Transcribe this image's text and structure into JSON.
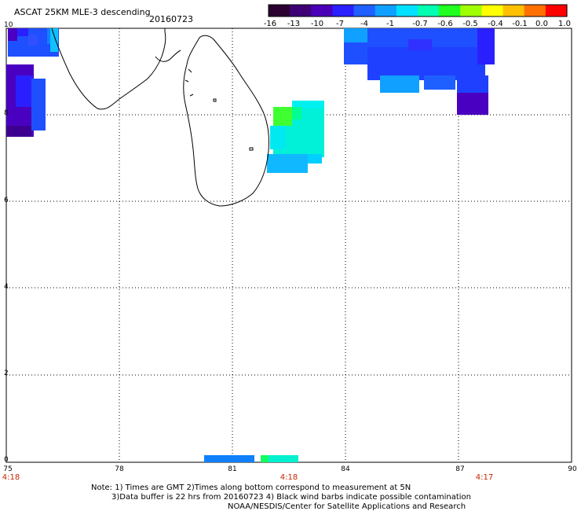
{
  "header": {
    "title": "ASCAT 25KM MLE-3 descending",
    "date": "20160723"
  },
  "colorbar": {
    "labels": [
      "-16",
      "-13",
      "-10",
      "-7",
      "-4",
      "-1",
      "-0.7",
      "-0.6",
      "-0.5",
      "-0.4",
      "-0.1",
      "0.0",
      "1.0"
    ],
    "colors": [
      "#2a0030",
      "#3d0075",
      "#4a00b8",
      "#2a20ff",
      "#2060ff",
      "#10a0ff",
      "#00e0ff",
      "#00ffb0",
      "#20ff20",
      "#a0ff00",
      "#ffff00",
      "#ffc000",
      "#ff7000",
      "#ff0000"
    ]
  },
  "map": {
    "lat_labels": [
      "10",
      "8",
      "6",
      "4",
      "2",
      "0"
    ],
    "lon_labels": [
      "75",
      "78",
      "81",
      "84",
      "87",
      "90"
    ],
    "times": [
      "4:18",
      "4:18",
      "4:17"
    ],
    "lat_range": [
      0,
      10
    ],
    "lon_range": [
      75,
      90
    ],
    "grid": "dotted"
  },
  "notes": {
    "line1": "Note: 1) Times are GMT 2)Times along bottom correspond to measurement at 5N",
    "line2": "3)Data buffer is 22 hrs from 20160723 4) Black wind barbs indicate possible contamination",
    "line3": "NOAA/NESDIS/Center for Satellite Applications and Research"
  }
}
